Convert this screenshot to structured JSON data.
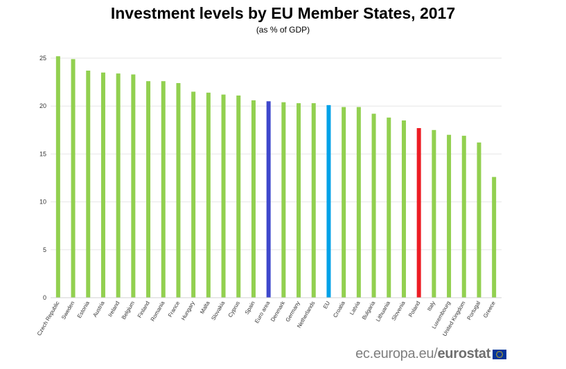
{
  "title": "Investment levels by EU Member States, 2017",
  "subtitle": "(as % of GDP)",
  "source": {
    "site": "ec.europa.eu/",
    "brand": "eurostat"
  },
  "colors": {
    "default": "#92d050",
    "euro_area": "#3f48cc",
    "eu": "#00a2e8",
    "poland": "#ed1c24",
    "grid": "#e6e6e6",
    "flag_bg": "#003399",
    "flag_star": "#ffcc00"
  },
  "chart_data": {
    "type": "bar",
    "title": "Investment levels by EU Member States, 2017",
    "subtitle": "(as % of GDP)",
    "xlabel": "",
    "ylabel": "",
    "ylim": [
      0,
      25
    ],
    "yticks": [
      0,
      5,
      10,
      15,
      20,
      25
    ],
    "grid": true,
    "legend": "none",
    "categories": [
      "Czech Republic",
      "Sweden",
      "Estonia",
      "Austria",
      "Ireland",
      "Belgium",
      "Finland",
      "Romania",
      "France",
      "Hungary",
      "Malta",
      "Slovakia",
      "Cyprus",
      "Spain",
      "Euro area",
      "Denmark",
      "Germany",
      "Netherlands",
      "EU",
      "Croatia",
      "Latvia",
      "Bulgaria",
      "Lithuania",
      "Slovenia",
      "Poland",
      "Italy",
      "Luxembourg",
      "United Kingdom",
      "Portugal",
      "Greece"
    ],
    "values": [
      25.2,
      24.9,
      23.7,
      23.5,
      23.4,
      23.3,
      22.6,
      22.6,
      22.4,
      21.5,
      21.4,
      21.2,
      21.1,
      20.6,
      20.5,
      20.4,
      20.3,
      20.3,
      20.1,
      19.9,
      19.9,
      19.2,
      18.8,
      18.5,
      17.7,
      17.5,
      17.0,
      16.9,
      16.2,
      12.6
    ],
    "highlight": {
      "Euro area": "euro_area",
      "EU": "eu",
      "Poland": "poland"
    }
  }
}
